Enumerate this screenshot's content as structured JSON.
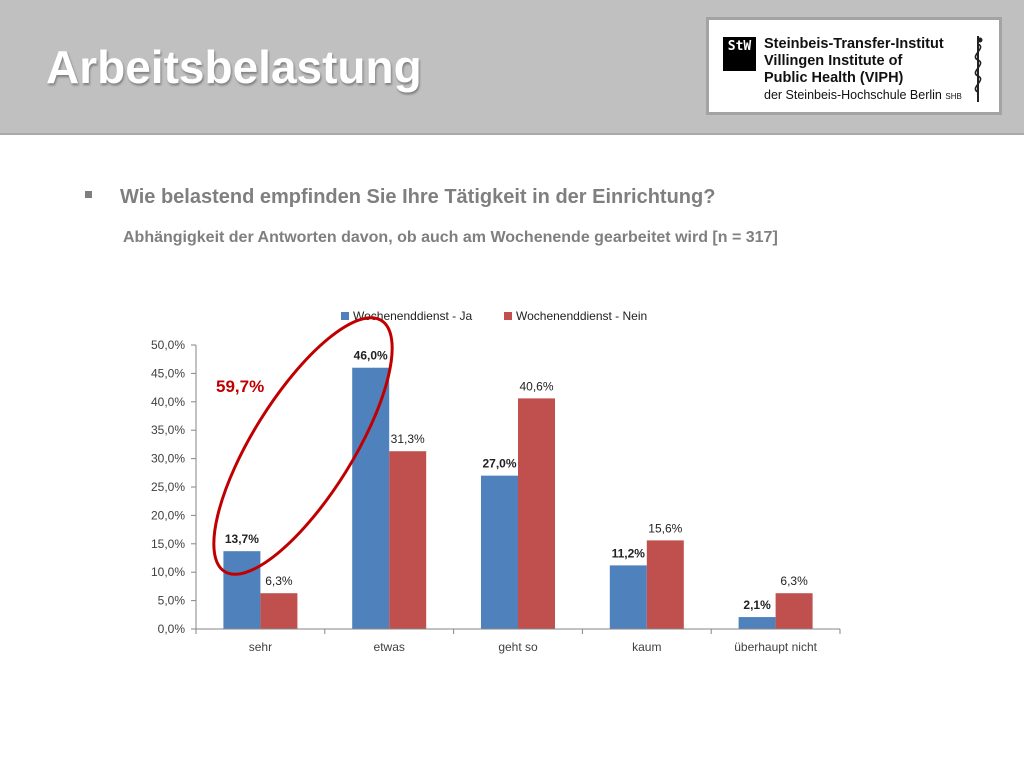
{
  "slide": {
    "title": "Arbeitsbelastung",
    "question": "Wie belastend empfinden Sie Ihre Tätigkeit in der Einrichtung?",
    "subtitle": "Abhängigkeit der Antworten davon, ob auch am Wochenende gearbeitet wird  [n = 317]"
  },
  "logo": {
    "mark": "StW",
    "line1": "Steinbeis-Transfer-Institut",
    "line2": "Villingen Institute of",
    "line3": "Public Health (VIPH)",
    "line4": "der Steinbeis-Hochschule Berlin",
    "line4_suffix": "SHB"
  },
  "chart_data": {
    "type": "bar",
    "categories": [
      "sehr",
      "etwas",
      "geht so",
      "kaum",
      "überhaupt nicht"
    ],
    "series": [
      {
        "name": "Wochenenddienst - Ja",
        "color": "#4f81bd",
        "values": [
          13.7,
          46.0,
          27.0,
          11.2,
          2.1
        ],
        "labels": [
          "13,7%",
          "46,0%",
          "27,0%",
          "11,2%",
          "2,1%"
        ]
      },
      {
        "name": "Wochenenddienst - Nein",
        "color": "#c0504d",
        "values": [
          6.3,
          31.3,
          40.6,
          15.6,
          6.3
        ],
        "labels": [
          "6,3%",
          "31,3%",
          "40,6%",
          "15,6%",
          "6,3%"
        ]
      }
    ],
    "ylim": [
      0,
      50
    ],
    "yticks": [
      "0,0%",
      "5,0%",
      "10,0%",
      "15,0%",
      "20,0%",
      "25,0%",
      "30,0%",
      "35,0%",
      "40,0%",
      "45,0%",
      "50,0%"
    ],
    "legend_position": "top",
    "annotation": {
      "text": "59,7%",
      "color": "#c00000",
      "shape": "ellipse around sehr and etwas (Ja)"
    }
  }
}
